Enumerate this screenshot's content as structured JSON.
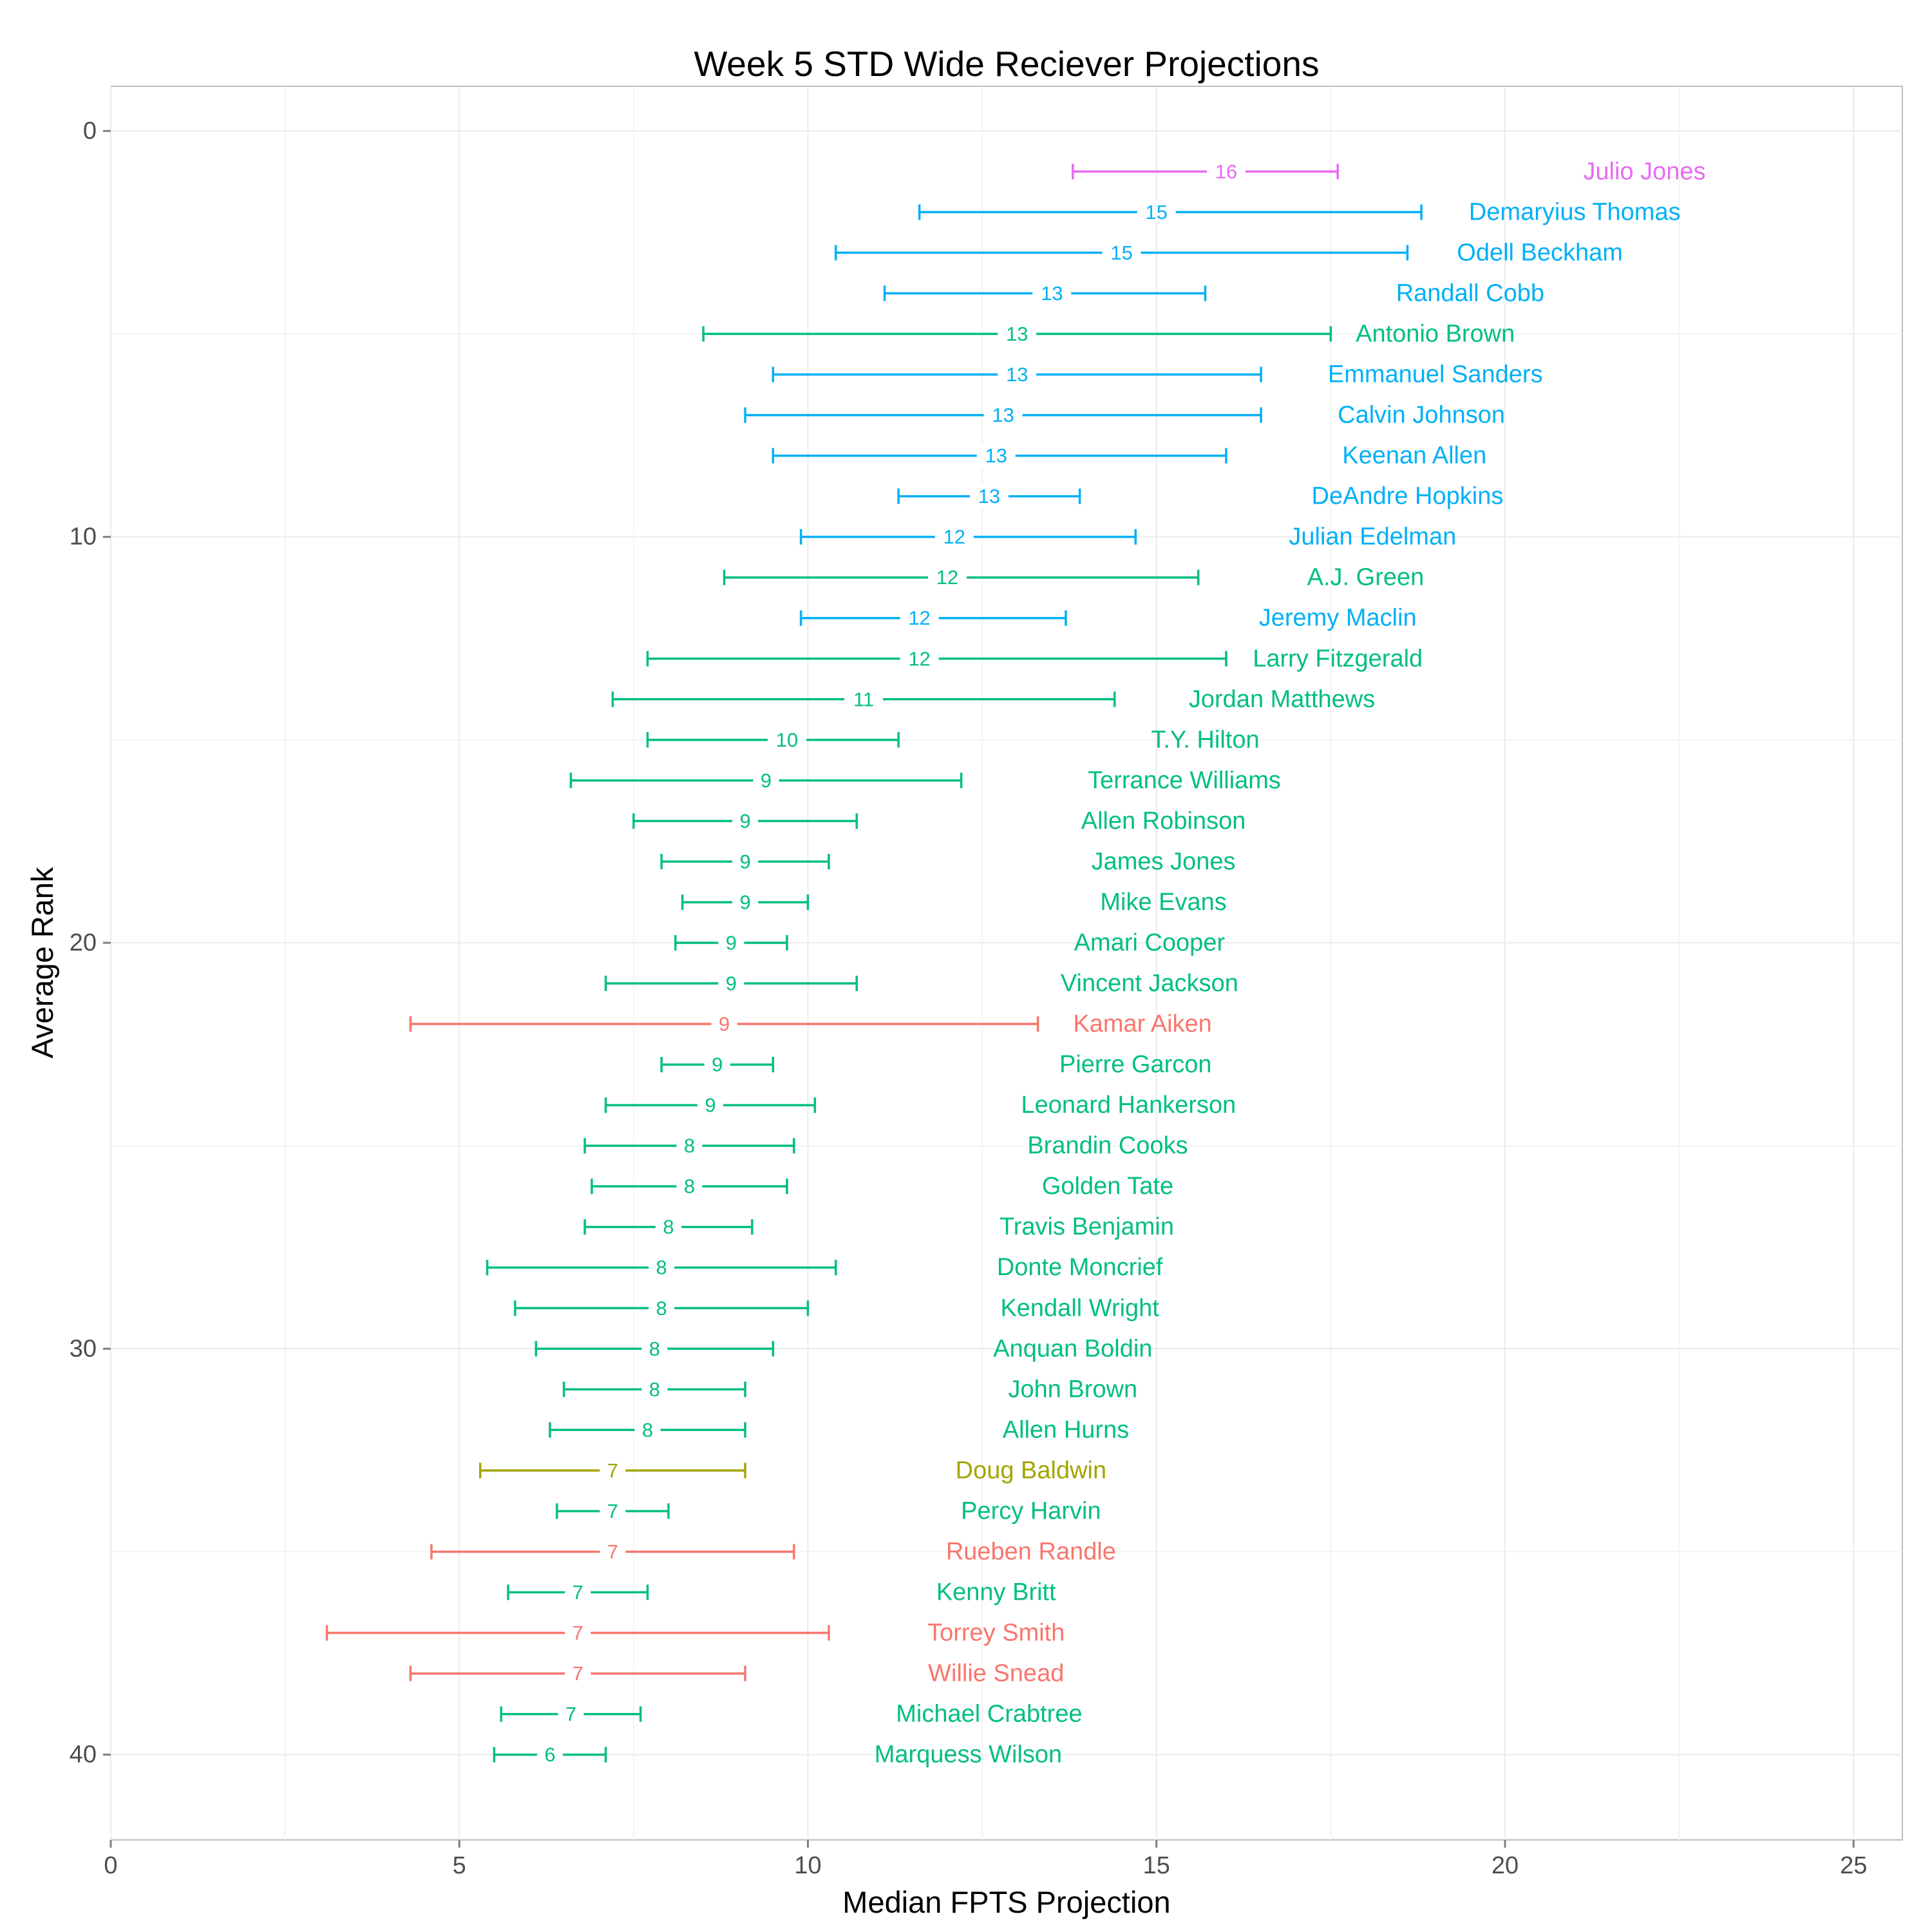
{
  "chart_data": {
    "type": "scatter",
    "title": "Week 5 STD Wide Reciever Projections",
    "xlabel": "Median FPTS Projection",
    "ylabel": "Average Rank",
    "xlim": [
      0,
      25.7
    ],
    "ylim": [
      -1.1,
      42.1
    ],
    "y_reversed": true,
    "x_ticks": [
      0,
      5,
      10,
      15,
      20,
      25
    ],
    "y_ticks": [
      0,
      10,
      20,
      30,
      40
    ],
    "grid": true,
    "legend": "none",
    "colors": {
      "tier_a": "#e76bf3",
      "tier_b": "#00b0f6",
      "tier_c": "#00bf7d",
      "tier_d": "#f8766d",
      "tier_e": "#a3a500"
    },
    "players": [
      {
        "name": "Julio Jones",
        "rank": 1,
        "median": 16,
        "low": 13.8,
        "high": 17.6,
        "label": "16",
        "color": "tier_a"
      },
      {
        "name": "Demaryius Thomas",
        "rank": 2,
        "median": 15,
        "low": 11.6,
        "high": 18.8,
        "label": "15",
        "color": "tier_b"
      },
      {
        "name": "Odell Beckham",
        "rank": 3,
        "median": 14.5,
        "low": 10.4,
        "high": 18.6,
        "label": "15",
        "color": "tier_b"
      },
      {
        "name": "Randall Cobb",
        "rank": 4,
        "median": 13.5,
        "low": 11.1,
        "high": 15.7,
        "label": "13",
        "color": "tier_b"
      },
      {
        "name": "Antonio Brown",
        "rank": 5,
        "median": 13,
        "low": 8.5,
        "high": 17.5,
        "label": "13",
        "color": "tier_c"
      },
      {
        "name": "Emmanuel Sanders",
        "rank": 6,
        "median": 13,
        "low": 9.5,
        "high": 16.5,
        "label": "13",
        "color": "tier_b"
      },
      {
        "name": "Calvin Johnson",
        "rank": 7,
        "median": 12.8,
        "low": 9.1,
        "high": 16.5,
        "label": "13",
        "color": "tier_b"
      },
      {
        "name": "Keenan Allen",
        "rank": 8,
        "median": 12.7,
        "low": 9.5,
        "high": 16,
        "label": "13",
        "color": "tier_b"
      },
      {
        "name": "DeAndre Hopkins",
        "rank": 9,
        "median": 12.6,
        "low": 11.3,
        "high": 13.9,
        "label": "13",
        "color": "tier_b"
      },
      {
        "name": "Julian Edelman",
        "rank": 10,
        "median": 12.1,
        "low": 9.9,
        "high": 14.7,
        "label": "12",
        "color": "tier_b"
      },
      {
        "name": "A.J. Green",
        "rank": 11,
        "median": 12,
        "low": 8.8,
        "high": 15.6,
        "label": "12",
        "color": "tier_c"
      },
      {
        "name": "Jeremy Maclin",
        "rank": 12,
        "median": 11.6,
        "low": 9.9,
        "high": 13.7,
        "label": "12",
        "color": "tier_b"
      },
      {
        "name": "Larry Fitzgerald",
        "rank": 13,
        "median": 11.6,
        "low": 7.7,
        "high": 16,
        "label": "12",
        "color": "tier_c"
      },
      {
        "name": "Jordan Matthews",
        "rank": 14,
        "median": 10.8,
        "low": 7.2,
        "high": 14.4,
        "label": "11",
        "color": "tier_c"
      },
      {
        "name": "T.Y. Hilton",
        "rank": 15,
        "median": 9.7,
        "low": 7.7,
        "high": 11.3,
        "label": "10",
        "color": "tier_c"
      },
      {
        "name": "Terrance Williams",
        "rank": 16,
        "median": 9.4,
        "low": 6.6,
        "high": 12.2,
        "label": "9",
        "color": "tier_c"
      },
      {
        "name": "Allen Robinson",
        "rank": 17,
        "median": 9.1,
        "low": 7.5,
        "high": 10.7,
        "label": "9",
        "color": "tier_c"
      },
      {
        "name": "James Jones",
        "rank": 18,
        "median": 9.1,
        "low": 7.9,
        "high": 10.3,
        "label": "9",
        "color": "tier_c"
      },
      {
        "name": "Mike Evans",
        "rank": 19,
        "median": 9.1,
        "low": 8.2,
        "high": 10,
        "label": "9",
        "color": "tier_c"
      },
      {
        "name": "Amari Cooper",
        "rank": 20,
        "median": 8.9,
        "low": 8.1,
        "high": 9.7,
        "label": "9",
        "color": "tier_c"
      },
      {
        "name": "Vincent Jackson",
        "rank": 21,
        "median": 8.9,
        "low": 7.1,
        "high": 10.7,
        "label": "9",
        "color": "tier_c"
      },
      {
        "name": "Kamar Aiken",
        "rank": 22,
        "median": 8.8,
        "low": 4.3,
        "high": 13.3,
        "label": "9",
        "color": "tier_d"
      },
      {
        "name": "Pierre Garcon",
        "rank": 23,
        "median": 8.7,
        "low": 7.9,
        "high": 9.5,
        "label": "9",
        "color": "tier_c"
      },
      {
        "name": "Leonard Hankerson",
        "rank": 24,
        "median": 8.6,
        "low": 7.1,
        "high": 10.1,
        "label": "9",
        "color": "tier_c"
      },
      {
        "name": "Brandin Cooks",
        "rank": 25,
        "median": 8.3,
        "low": 6.8,
        "high": 9.8,
        "label": "8",
        "color": "tier_c"
      },
      {
        "name": "Golden Tate",
        "rank": 26,
        "median": 8.3,
        "low": 6.9,
        "high": 9.7,
        "label": "8",
        "color": "tier_c"
      },
      {
        "name": "Travis Benjamin",
        "rank": 27,
        "median": 8,
        "low": 6.8,
        "high": 9.2,
        "label": "8",
        "color": "tier_c"
      },
      {
        "name": "Donte Moncrief",
        "rank": 28,
        "median": 7.9,
        "low": 5.4,
        "high": 10.4,
        "label": "8",
        "color": "tier_c"
      },
      {
        "name": "Kendall Wright",
        "rank": 29,
        "median": 7.9,
        "low": 5.8,
        "high": 10,
        "label": "8",
        "color": "tier_c"
      },
      {
        "name": "Anquan Boldin",
        "rank": 30,
        "median": 7.8,
        "low": 6.1,
        "high": 9.5,
        "label": "8",
        "color": "tier_c"
      },
      {
        "name": "John Brown",
        "rank": 31,
        "median": 7.8,
        "low": 6.5,
        "high": 9.1,
        "label": "8",
        "color": "tier_c"
      },
      {
        "name": "Allen Hurns",
        "rank": 32,
        "median": 7.7,
        "low": 6.3,
        "high": 9.1,
        "label": "8",
        "color": "tier_c"
      },
      {
        "name": "Doug Baldwin",
        "rank": 33,
        "median": 7.2,
        "low": 5.3,
        "high": 9.1,
        "label": "7",
        "color": "tier_e"
      },
      {
        "name": "Percy Harvin",
        "rank": 34,
        "median": 7.2,
        "low": 6.4,
        "high": 8,
        "label": "7",
        "color": "tier_c"
      },
      {
        "name": "Rueben Randle",
        "rank": 35,
        "median": 7.2,
        "low": 4.6,
        "high": 9.8,
        "label": "7",
        "color": "tier_d"
      },
      {
        "name": "Kenny Britt",
        "rank": 36,
        "median": 6.7,
        "low": 5.7,
        "high": 7.7,
        "label": "7",
        "color": "tier_c"
      },
      {
        "name": "Torrey Smith",
        "rank": 37,
        "median": 6.7,
        "low": 3.1,
        "high": 10.3,
        "label": "7",
        "color": "tier_d"
      },
      {
        "name": "Willie Snead",
        "rank": 38,
        "median": 6.7,
        "low": 4.3,
        "high": 9.1,
        "label": "7",
        "color": "tier_d"
      },
      {
        "name": "Michael Crabtree",
        "rank": 39,
        "median": 6.6,
        "low": 5.6,
        "high": 7.6,
        "label": "7",
        "color": "tier_c"
      },
      {
        "name": "Marquess Wilson",
        "rank": 40,
        "median": 6.3,
        "low": 5.5,
        "high": 7.1,
        "label": "6",
        "color": "tier_c"
      }
    ]
  }
}
